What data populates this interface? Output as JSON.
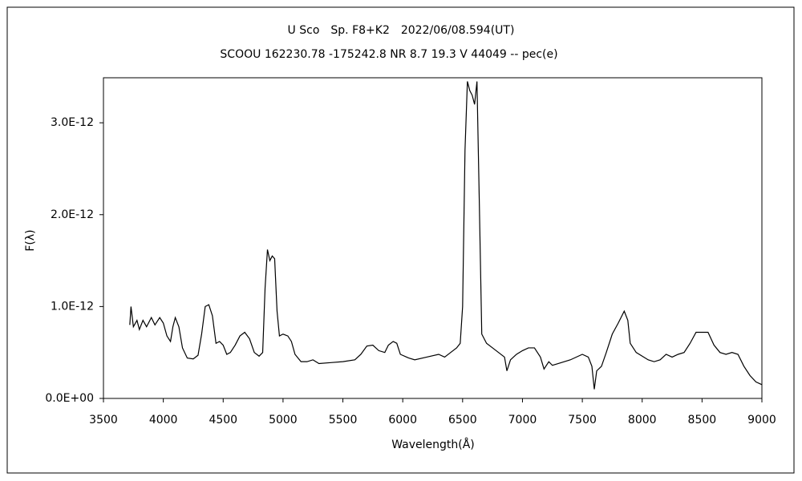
{
  "chart_data": {
    "type": "line",
    "title": "U Sco　Sp. F8+K2　2022/06/08.594(UT)",
    "subtitle": "SCOOU 162230.78 -175242.8 NR 8.7 19.3 V 44049 -- pec(e)",
    "xlabel": "Wavelength(Å)",
    "ylabel": "F(λ)",
    "color": "#000000",
    "xlim": [
      3500,
      9000
    ],
    "xticks": [
      3500,
      4000,
      4500,
      5000,
      5500,
      6000,
      6500,
      7000,
      7500,
      8000,
      8500,
      9000
    ],
    "ylim": [
      0,
      3.49e-12
    ],
    "yticks": [
      {
        "value": 0,
        "label": "0.0E+00"
      },
      {
        "value": 1e-12,
        "label": "1.0E-12"
      },
      {
        "value": 2e-12,
        "label": "2.0E-12"
      },
      {
        "value": 3e-12,
        "label": "3.0E-12"
      }
    ],
    "grid": false,
    "x": [
      3720,
      3730,
      3750,
      3780,
      3800,
      3830,
      3860,
      3900,
      3930,
      3970,
      4000,
      4030,
      4060,
      4080,
      4100,
      4130,
      4160,
      4200,
      4250,
      4290,
      4320,
      4350,
      4380,
      4410,
      4440,
      4470,
      4500,
      4530,
      4560,
      4600,
      4640,
      4680,
      4720,
      4760,
      4800,
      4830,
      4850,
      4870,
      4890,
      4910,
      4930,
      4950,
      4970,
      5000,
      5040,
      5070,
      5100,
      5150,
      5200,
      5250,
      5300,
      5400,
      5500,
      5600,
      5650,
      5700,
      5750,
      5800,
      5850,
      5880,
      5920,
      5950,
      5980,
      6050,
      6100,
      6200,
      6300,
      6350,
      6400,
      6450,
      6480,
      6500,
      6520,
      6540,
      6560,
      6580,
      6600,
      6620,
      6640,
      6660,
      6700,
      6750,
      6800,
      6850,
      6870,
      6900,
      6950,
      7000,
      7050,
      7100,
      7150,
      7180,
      7220,
      7250,
      7300,
      7400,
      7500,
      7550,
      7580,
      7600,
      7620,
      7660,
      7700,
      7750,
      7800,
      7850,
      7880,
      7900,
      7950,
      8000,
      8050,
      8100,
      8150,
      8200,
      8250,
      8300,
      8350,
      8400,
      8450,
      8500,
      8550,
      8600,
      8650,
      8700,
      8750,
      8800,
      8850,
      8900,
      8950,
      9000
    ],
    "values": [
      8e-13,
      1e-12,
      7.8e-13,
      8.5e-13,
      7.5e-13,
      8.5e-13,
      7.8e-13,
      8.8e-13,
      8e-13,
      8.8e-13,
      8.2e-13,
      6.8e-13,
      6.2e-13,
      7.8e-13,
      8.8e-13,
      7.8e-13,
      5.5e-13,
      4.4e-13,
      4.3e-13,
      4.7e-13,
      7e-13,
      1e-12,
      1.02e-12,
      9e-13,
      6e-13,
      6.2e-13,
      5.8e-13,
      4.8e-13,
      5e-13,
      5.8e-13,
      6.8e-13,
      7.2e-13,
      6.5e-13,
      5e-13,
      4.6e-13,
      5e-13,
      1.2e-12,
      1.62e-12,
      1.5e-12,
      1.55e-12,
      1.52e-12,
      9.5e-13,
      6.8e-13,
      7e-13,
      6.8e-13,
      6.2e-13,
      4.8e-13,
      4e-13,
      4e-13,
      4.2e-13,
      3.8e-13,
      3.9e-13,
      4e-13,
      4.2e-13,
      4.8e-13,
      5.7e-13,
      5.8e-13,
      5.2e-13,
      5e-13,
      5.8e-13,
      6.2e-13,
      6e-13,
      4.8e-13,
      4.4e-13,
      4.2e-13,
      4.5e-13,
      4.8e-13,
      4.5e-13,
      5e-13,
      5.5e-13,
      6e-13,
      1e-12,
      2.7e-12,
      3.45e-12,
      3.35e-12,
      3.3e-12,
      3.2e-12,
      3.45e-12,
      2.1e-12,
      7e-13,
      6e-13,
      5.5e-13,
      5e-13,
      4.5e-13,
      3e-13,
      4.2e-13,
      4.8e-13,
      5.2e-13,
      5.5e-13,
      5.5e-13,
      4.5e-13,
      3.2e-13,
      4e-13,
      3.6e-13,
      3.8e-13,
      4.2e-13,
      4.8e-13,
      4.5e-13,
      3.5e-13,
      1e-13,
      3e-13,
      3.5e-13,
      5e-13,
      7e-13,
      8.2e-13,
      9.5e-13,
      8.5e-13,
      6e-13,
      5e-13,
      4.6e-13,
      4.2e-13,
      4e-13,
      4.2e-13,
      4.8e-13,
      4.5e-13,
      4.8e-13,
      5e-13,
      6e-13,
      7.2e-13,
      7.2e-13,
      7.2e-13,
      5.8e-13,
      5e-13,
      4.8e-13,
      5e-13,
      4.8e-13,
      3.5e-13,
      2.5e-13,
      1.8e-13,
      1.5e-13
    ]
  }
}
